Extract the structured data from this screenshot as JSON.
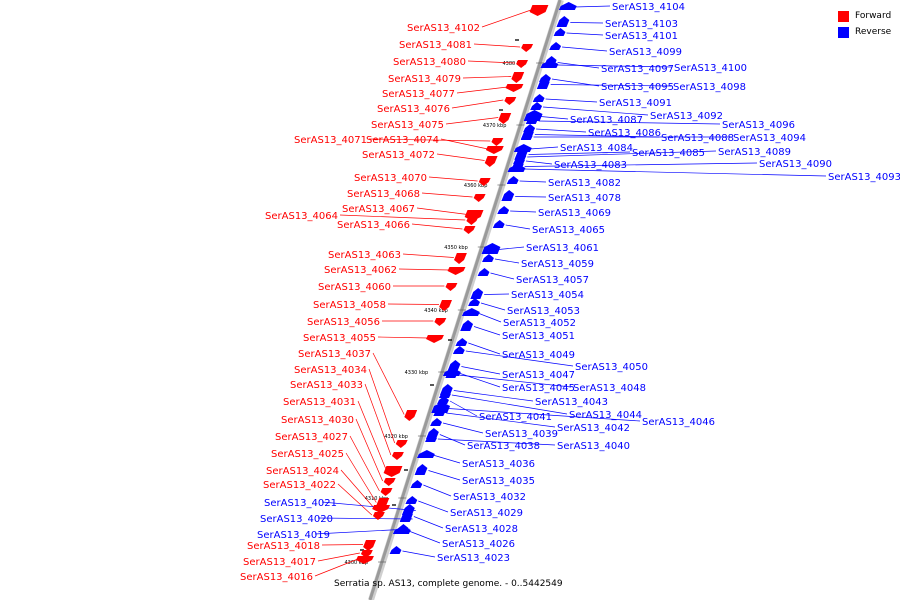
{
  "colors": {
    "forward": "#ff0000",
    "reverse": "#0000ff",
    "backbone": "#9a9a9a",
    "line": "#ff0000"
  },
  "legend": {
    "forward": "Forward",
    "reverse": "Reverse"
  },
  "caption": "Serratia sp. AS13, complete genome. - 0..5442549",
  "ticks": [
    "4300 kbp",
    "4310 kbp",
    "4320 kbp",
    "4330 kbp",
    "4340 kbp",
    "4350 kbp",
    "4360 kbp",
    "4370 kbp",
    "4380 kbp"
  ],
  "forward_labels": [
    "SerAS13_4102",
    "SerAS13_4081",
    "SerAS13_4080",
    "SerAS13_4079",
    "SerAS13_4077",
    "SerAS13_4076",
    "SerAS13_4075",
    "SerAS13_4071",
    "SerAS13_4074",
    "SerAS13_4072",
    "SerAS13_4070",
    "SerAS13_4068",
    "SerAS13_4067",
    "SerAS13_4064",
    "SerAS13_4066",
    "SerAS13_4063",
    "SerAS13_4062",
    "SerAS13_4060",
    "SerAS13_4058",
    "SerAS13_4056",
    "SerAS13_4055",
    "SerAS13_4037",
    "SerAS13_4034",
    "SerAS13_4033",
    "SerAS13_4031",
    "SerAS13_4030",
    "SerAS13_4027",
    "SerAS13_4025",
    "SerAS13_4024",
    "SerAS13_4022",
    "SerAS13_4018",
    "SerAS13_4017",
    "SerAS13_4016"
  ],
  "reverse_labels": [
    "SerAS13_4104",
    "SerAS13_4103",
    "SerAS13_4101",
    "SerAS13_4099",
    "SerAS13_4097",
    "SerAS13_4100",
    "SerAS13_4095",
    "SerAS13_4098",
    "SerAS13_4091",
    "SerAS13_4092",
    "SerAS13_4087",
    "SerAS13_4096",
    "SerAS13_4086",
    "SerAS13_4088",
    "SerAS13_4094",
    "SerAS13_4084",
    "SerAS13_4085",
    "SerAS13_4089",
    "SerAS13_4083",
    "SerAS13_4090",
    "SerAS13_4093",
    "SerAS13_4082",
    "SerAS13_4078",
    "SerAS13_4069",
    "SerAS13_4065",
    "SerAS13_4061",
    "SerAS13_4059",
    "SerAS13_4057",
    "SerAS13_4054",
    "SerAS13_4053",
    "SerAS13_4052",
    "SerAS13_4051",
    "SerAS13_4049",
    "SerAS13_4050",
    "SerAS13_4047",
    "SerAS13_4045",
    "SerAS13_4048",
    "SerAS13_4043",
    "SerAS13_4044",
    "SerAS13_4041",
    "SerAS13_4046",
    "SerAS13_4042",
    "SerAS13_4039",
    "SerAS13_4038",
    "SerAS13_4040",
    "SerAS13_4036",
    "SerAS13_4035",
    "SerAS13_4032",
    "SerAS13_4029",
    "SerAS13_4028",
    "SerAS13_4026",
    "SerAS13_4023",
    "SerAS13_4021",
    "SerAS13_4020",
    "SerAS13_4019"
  ]
}
